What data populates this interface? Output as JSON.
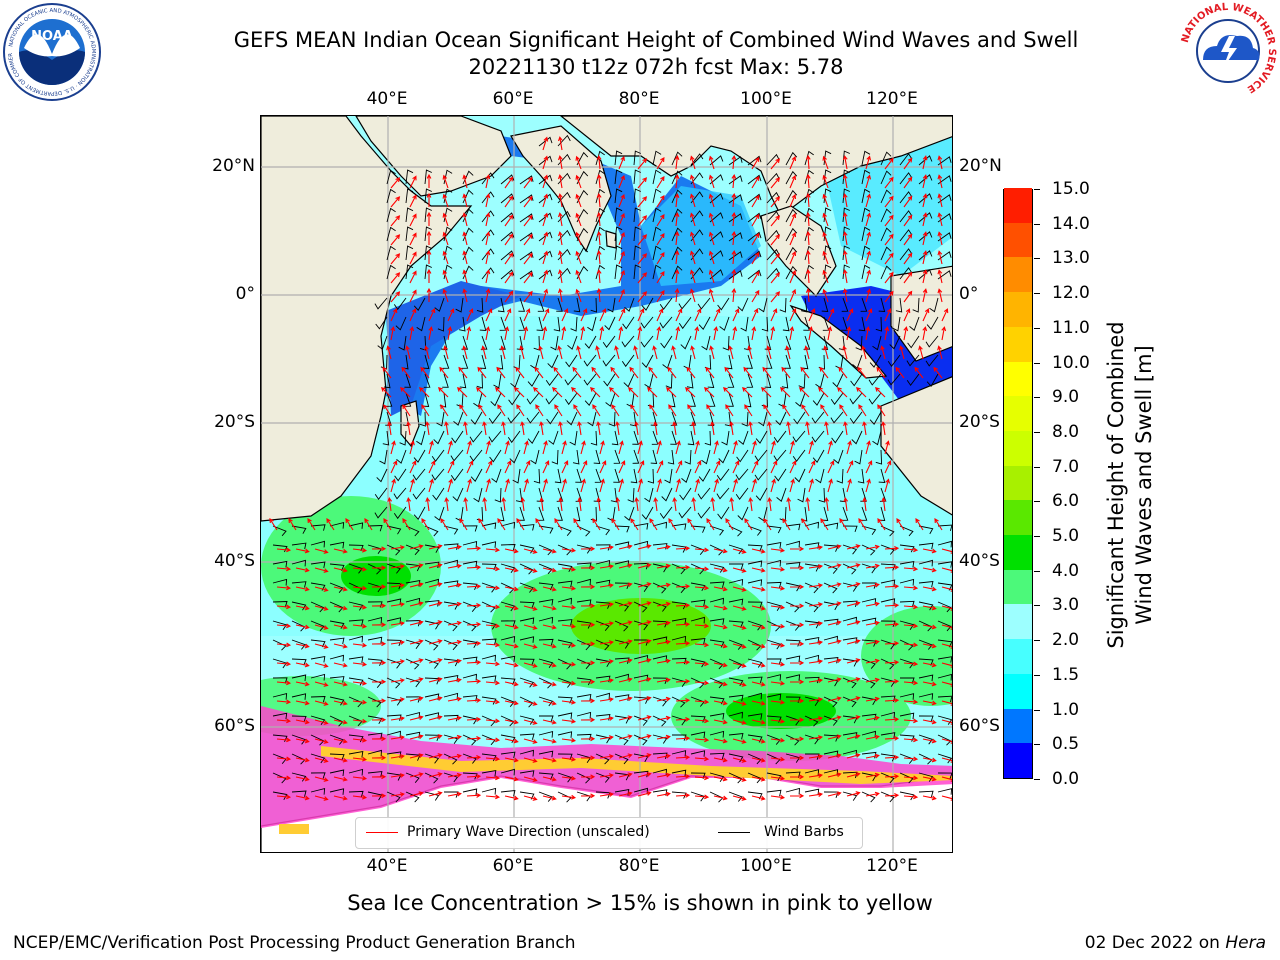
{
  "header": {
    "title_line1": "GEFS MEAN Indian Ocean Significant Height of Combined Wind Waves and Swell",
    "title_line2": "20221130 t12z 072h fcst   Max: 5.78"
  },
  "logos": {
    "noaa_text": "NOAA",
    "noaa_ring_text": "NATIONAL OCEANIC AND ATMOSPHERIC ADMINISTRATION · U.S. DEPARTMENT OF COMMERCE",
    "nws_ring_text": "NATIONAL WEATHER SERVICE"
  },
  "map": {
    "lon_ticks": [
      "40°E",
      "60°E",
      "80°E",
      "100°E",
      "120°E"
    ],
    "lat_ticks_left": [
      "20°N",
      "0°",
      "20°S",
      "40°S",
      "60°S"
    ],
    "lat_ticks_right": [
      "20°N",
      "0°",
      "20°S",
      "40°S",
      "60°S"
    ],
    "colors": {
      "land": "#efeddc",
      "ocean_fill": "#9dffff",
      "grid": "#b0b0b0",
      "coast": "#000000",
      "wave_arrow": "#ff0000",
      "wind_barb": "#000000",
      "ice": [
        "#ff44cc",
        "#ff99dd",
        "#ffcc33"
      ]
    }
  },
  "legend": {
    "wave_label": "Primary Wave Direction (unscaled)",
    "barb_label": "Wind Barbs"
  },
  "colorbar": {
    "title_line1": "Significant Height of Combined",
    "title_line2": "Wind Waves and Swell [m]",
    "ticks": [
      "0.0",
      "0.5",
      "1.0",
      "1.5",
      "2.0",
      "3.0",
      "4.0",
      "5.0",
      "6.0",
      "7.0",
      "8.0",
      "9.0",
      "10.0",
      "11.0",
      "12.0",
      "13.0",
      "14.0",
      "15.0"
    ],
    "colors": [
      "#0000ff",
      "#0077ff",
      "#00ffff",
      "#47ffff",
      "#9dffff",
      "#4cf97a",
      "#00e000",
      "#5ae800",
      "#a8f000",
      "#ccff00",
      "#e6ff00",
      "#ffff00",
      "#ffd200",
      "#ffb400",
      "#ff8c00",
      "#ff5000",
      "#ff1e00"
    ]
  },
  "notes": {
    "ice_note": "Sea Ice Concentration > 15% is shown in pink to yellow",
    "footer_left": "NCEP/EMC/Verification Post Processing Product Generation Branch",
    "footer_date": "02 Dec 2022 on ",
    "footer_host": "Hera"
  }
}
